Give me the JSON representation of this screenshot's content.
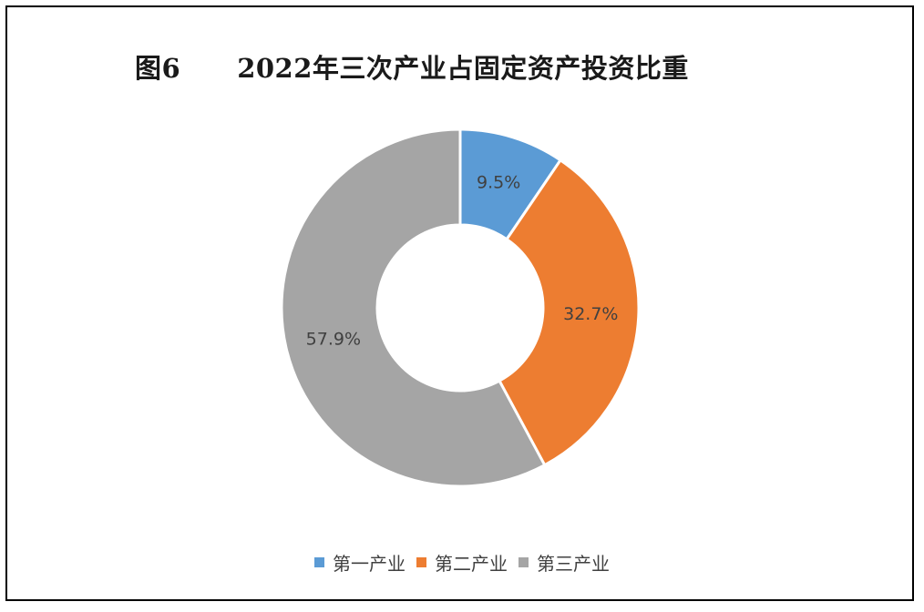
{
  "title": {
    "figure_no": "图6",
    "text": "2022年三次产业占固定资产投资比重"
  },
  "chart_data": {
    "type": "donut",
    "categories": [
      "第一产业",
      "第二产业",
      "第三产业"
    ],
    "values": [
      9.5,
      32.7,
      57.9
    ],
    "labels": [
      "9.5%",
      "32.7%",
      "57.9%"
    ],
    "colors": [
      "#5B9BD5",
      "#ED7D31",
      "#A5A5A5"
    ],
    "legend_position": "bottom",
    "unit": "%"
  }
}
